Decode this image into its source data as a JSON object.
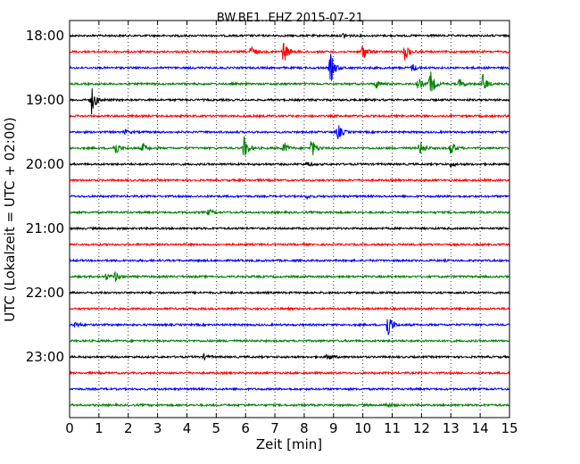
{
  "chart_data": {
    "type": "line",
    "title": "BW.BE1..EHZ 2015-07-21",
    "xlabel": "Zeit  [min]",
    "ylabel": "UTC (Lokalzeit = UTC + 02:00)",
    "xlim": [
      0,
      15
    ],
    "x_ticks": [
      "0",
      "1",
      "2",
      "3",
      "4",
      "5",
      "6",
      "7",
      "8",
      "9",
      "10",
      "11",
      "12",
      "13",
      "14",
      "15"
    ],
    "y_tick_labels": [
      "18:00",
      "19:00",
      "20:00",
      "21:00",
      "22:00",
      "23:00"
    ],
    "grid": "vertical dotted",
    "series_colors": [
      "#000000",
      "#ff0000",
      "#0000ff",
      "#008000"
    ],
    "series": [
      {
        "start": "18:00",
        "events": [
          {
            "t": 9.35,
            "amp": 0.3
          }
        ]
      },
      {
        "start": "18:15",
        "events": [
          {
            "t": 6.2,
            "amp": 0.6
          },
          {
            "t": 7.3,
            "amp": 1.2
          },
          {
            "t": 10.0,
            "amp": 0.9
          },
          {
            "t": 11.45,
            "amp": 0.9
          }
        ]
      },
      {
        "start": "18:30",
        "events": [
          {
            "t": 8.9,
            "amp": 1.6
          },
          {
            "t": 11.7,
            "amp": 0.4
          }
        ]
      },
      {
        "start": "18:45",
        "events": [
          {
            "t": 10.45,
            "amp": 0.4
          },
          {
            "t": 11.9,
            "amp": 0.6
          },
          {
            "t": 12.3,
            "amp": 1.4
          },
          {
            "t": 13.3,
            "amp": 0.5
          },
          {
            "t": 14.1,
            "amp": 1.0
          }
        ]
      },
      {
        "start": "19:00",
        "events": [
          {
            "t": 0.75,
            "amp": 1.4
          }
        ]
      },
      {
        "start": "19:15",
        "events": []
      },
      {
        "start": "19:30",
        "events": [
          {
            "t": 9.15,
            "amp": 0.8
          },
          {
            "t": 1.9,
            "amp": 0.2
          }
        ]
      },
      {
        "start": "19:45",
        "events": [
          {
            "t": 1.55,
            "amp": 0.8
          },
          {
            "t": 2.5,
            "amp": 0.5
          },
          {
            "t": 5.95,
            "amp": 1.2
          },
          {
            "t": 7.3,
            "amp": 0.6
          },
          {
            "t": 8.25,
            "amp": 1.0
          },
          {
            "t": 11.95,
            "amp": 0.8
          },
          {
            "t": 13.0,
            "amp": 0.8
          }
        ]
      },
      {
        "start": "20:00",
        "events": [
          {
            "t": 8.1,
            "amp": 0.25
          },
          {
            "t": 13.0,
            "amp": 0.25
          }
        ]
      },
      {
        "start": "20:15",
        "events": []
      },
      {
        "start": "20:30",
        "events": [
          {
            "t": 8.1,
            "amp": 0.2
          }
        ]
      },
      {
        "start": "20:45",
        "events": [
          {
            "t": 4.75,
            "amp": 0.3
          }
        ]
      },
      {
        "start": "21:00",
        "events": []
      },
      {
        "start": "21:15",
        "events": []
      },
      {
        "start": "21:30",
        "events": []
      },
      {
        "start": "21:45",
        "events": [
          {
            "t": 1.25,
            "amp": 0.3
          },
          {
            "t": 1.55,
            "amp": 0.5
          }
        ]
      },
      {
        "start": "22:00",
        "events": []
      },
      {
        "start": "22:15",
        "events": []
      },
      {
        "start": "22:30",
        "events": [
          {
            "t": 0.2,
            "amp": 0.3
          },
          {
            "t": 10.85,
            "amp": 1.4
          }
        ]
      },
      {
        "start": "22:45",
        "events": []
      },
      {
        "start": "23:00",
        "events": [
          {
            "t": 4.6,
            "amp": 0.25
          },
          {
            "t": 8.8,
            "amp": 0.35
          }
        ]
      },
      {
        "start": "23:15",
        "events": []
      },
      {
        "start": "23:30",
        "events": []
      },
      {
        "start": "23:45",
        "events": [
          {
            "t": 10.8,
            "amp": 0.3
          }
        ]
      }
    ]
  }
}
